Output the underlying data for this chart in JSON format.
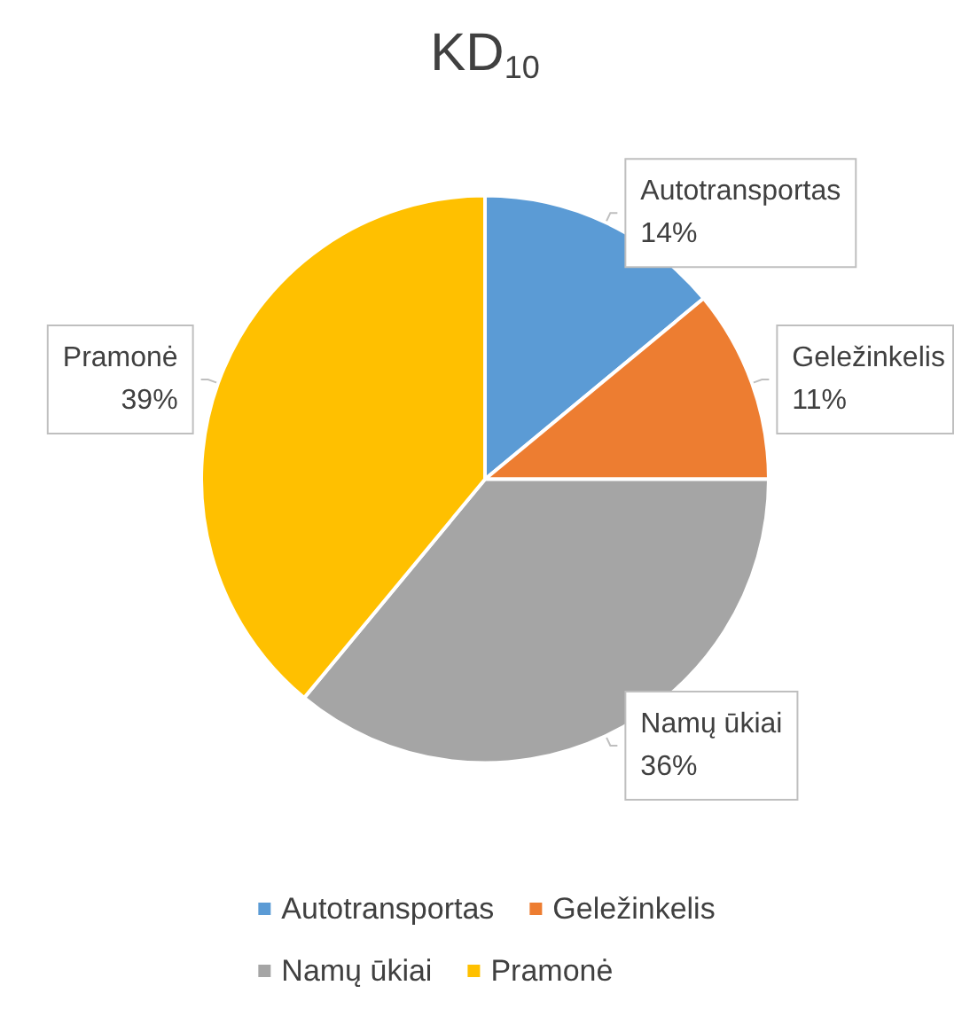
{
  "chart_data": {
    "type": "pie",
    "title": "KD$_{10}$",
    "categories": [
      "Autotransportas",
      "Geležinkelis",
      "Namų ūkiai",
      "Pramonė"
    ],
    "values": [
      14,
      11,
      36,
      39
    ],
    "colors": [
      "#5b9bd5",
      "#ed7d31",
      "#a5a5a5",
      "#ffc000"
    ],
    "value_labels": [
      "14%",
      "11%",
      "36%",
      "39%"
    ],
    "legend": "bottom"
  }
}
